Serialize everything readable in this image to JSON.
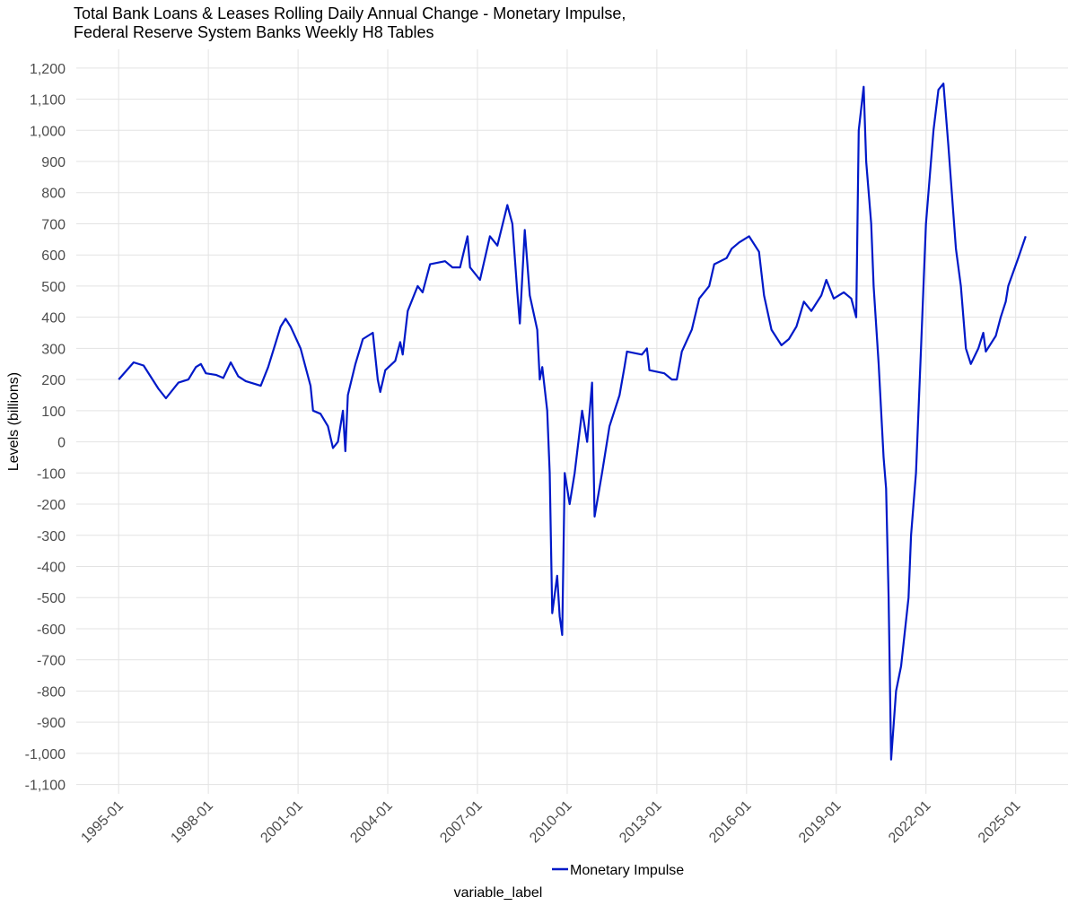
{
  "chart_data": {
    "type": "line",
    "title": [
      "Total Bank Loans & Leases Rolling Daily Annual Change - Monetary Impulse,",
      "Federal Reserve System Banks Weekly H8 Tables"
    ],
    "y_label": "Levels (billions)",
    "legend_title": "variable_label",
    "legend_position": "bottom",
    "grid": true,
    "x": [
      "1995-01",
      "1995-07",
      "1995-11",
      "1996-05",
      "1996-08",
      "1997-01",
      "1997-05",
      "1997-08",
      "1997-10",
      "1997-12",
      "1998-04",
      "1998-07",
      "1998-10",
      "1999-01",
      "1999-04",
      "1999-08",
      "1999-10",
      "2000-01",
      "2000-06",
      "2000-08",
      "2000-10",
      "2001-02",
      "2001-06",
      "2001-07",
      "2001-10",
      "2002-01",
      "2002-03",
      "2002-05",
      "2002-07",
      "2002-08",
      "2002-09",
      "2002-12",
      "2003-03",
      "2003-07",
      "2003-09",
      "2003-10",
      "2003-12",
      "2004-04",
      "2004-06",
      "2004-07",
      "2004-09",
      "2005-01",
      "2005-03",
      "2005-06",
      "2005-12",
      "2006-03",
      "2006-06",
      "2006-09",
      "2006-10",
      "2007-02",
      "2007-06",
      "2007-09",
      "2008-01",
      "2008-03",
      "2008-05",
      "2008-06",
      "2008-08",
      "2008-10",
      "2009-01",
      "2009-02",
      "2009-03",
      "2009-05",
      "2009-06",
      "2009-07",
      "2009-09",
      "2009-10",
      "2009-11",
      "2009-12",
      "2010-02",
      "2010-04",
      "2010-07",
      "2010-09",
      "2010-11",
      "2010-12",
      "2011-03",
      "2011-06",
      "2011-10",
      "2011-12",
      "2012-01",
      "2012-07",
      "2012-09",
      "2012-10",
      "2013-04",
      "2013-07",
      "2013-09",
      "2013-11",
      "2014-03",
      "2014-06",
      "2014-10",
      "2014-12",
      "2015-05",
      "2015-07",
      "2015-10",
      "2016-02",
      "2016-06",
      "2016-08",
      "2016-11",
      "2017-03",
      "2017-06",
      "2017-09",
      "2017-12",
      "2018-03",
      "2018-07",
      "2018-09",
      "2018-12",
      "2019-04",
      "2019-07",
      "2019-09",
      "2019-10",
      "2019-12",
      "2020-01",
      "2020-03",
      "2020-04",
      "2020-06",
      "2020-08",
      "2020-09",
      "2020-10",
      "2020-11",
      "2021-01",
      "2021-03",
      "2021-06",
      "2021-07",
      "2021-09",
      "2021-11",
      "2022-01",
      "2022-04",
      "2022-06",
      "2022-08",
      "2022-10",
      "2023-01",
      "2023-03",
      "2023-05",
      "2023-07",
      "2023-10",
      "2023-12",
      "2024-01",
      "2024-05",
      "2024-07",
      "2024-09",
      "2024-10",
      "2025-02",
      "2025-05"
    ],
    "series": [
      {
        "name": "Monetary Impulse",
        "color": "#0019c8",
        "values": [
          200,
          255,
          245,
          170,
          140,
          190,
          200,
          240,
          250,
          220,
          215,
          205,
          255,
          210,
          195,
          185,
          180,
          240,
          370,
          395,
          370,
          300,
          180,
          100,
          90,
          50,
          -20,
          0,
          100,
          -30,
          150,
          250,
          330,
          350,
          200,
          160,
          230,
          260,
          320,
          280,
          420,
          500,
          480,
          570,
          580,
          560,
          560,
          660,
          560,
          520,
          660,
          630,
          760,
          700,
          480,
          380,
          680,
          470,
          360,
          200,
          240,
          100,
          -100,
          -550,
          -430,
          -560,
          -620,
          -100,
          -200,
          -100,
          100,
          0,
          190,
          -240,
          -100,
          50,
          150,
          240,
          290,
          280,
          300,
          230,
          220,
          200,
          200,
          290,
          360,
          460,
          500,
          570,
          590,
          620,
          640,
          660,
          610,
          470,
          360,
          310,
          330,
          370,
          450,
          420,
          470,
          520,
          460,
          480,
          460,
          400,
          1000,
          1140,
          900,
          700,
          500,
          250,
          -50,
          -150,
          -500,
          -1020,
          -800,
          -720,
          -500,
          -300,
          -100,
          300,
          700,
          1000,
          1130,
          1150,
          950,
          620,
          500,
          300,
          250,
          300,
          350,
          290,
          340,
          400,
          450,
          500,
          590,
          660
        ]
      }
    ],
    "xlim": [
      "1993-08",
      "2026-10"
    ],
    "xticks": [
      "1995-01",
      "1998-01",
      "2001-01",
      "2004-01",
      "2007-01",
      "2010-01",
      "2013-01",
      "2016-01",
      "2019-01",
      "2022-01",
      "2025-01"
    ],
    "ylim": [
      -1130,
      1260
    ],
    "yticks": [
      {
        "value": -1100,
        "label": "-1,100"
      },
      {
        "value": -1000,
        "label": "-1,000"
      },
      -900,
      -800,
      -700,
      -600,
      -500,
      -400,
      -300,
      -200,
      -100,
      0,
      100,
      200,
      300,
      400,
      500,
      600,
      700,
      800,
      900,
      {
        "value": 1000,
        "label": "1,000"
      },
      {
        "value": 1100,
        "label": "1,100"
      },
      {
        "value": 1200,
        "label": "1,200"
      }
    ]
  }
}
